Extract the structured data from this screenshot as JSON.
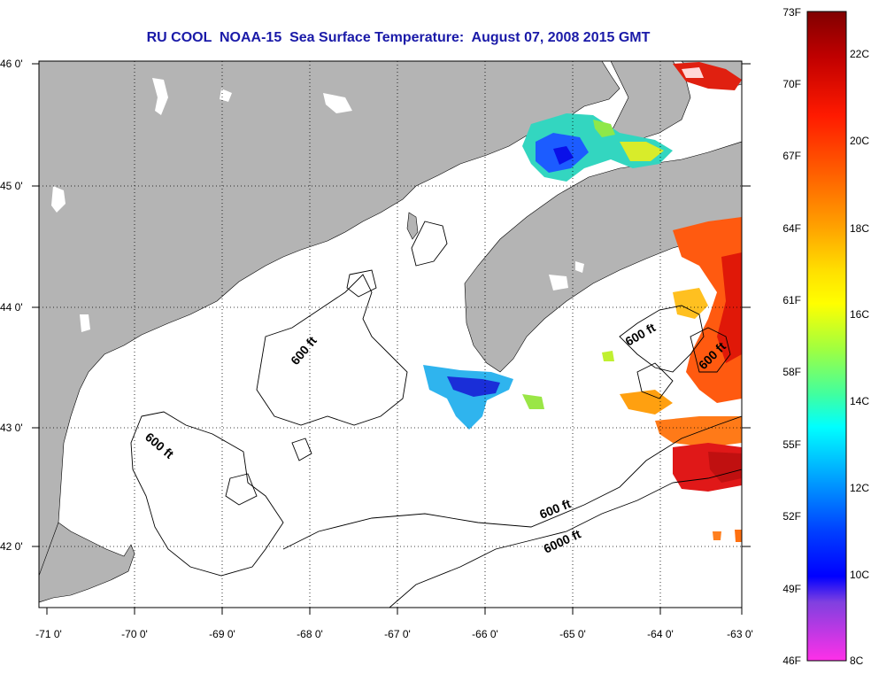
{
  "title": "RU COOL  NOAA-15  Sea Surface Temperature:  August 07, 2008 2015 GMT",
  "map": {
    "lon_range": [
      -71,
      -63
    ],
    "lat_range": [
      41.5,
      46
    ],
    "lon_ticks": [
      {
        "value": -71,
        "label": "-71 0'"
      },
      {
        "value": -70,
        "label": "-70 0'"
      },
      {
        "value": -69,
        "label": "-69 0'"
      },
      {
        "value": -68,
        "label": "-68 0'"
      },
      {
        "value": -67,
        "label": "-67 0'"
      },
      {
        "value": -66,
        "label": "-66 0'"
      },
      {
        "value": -65,
        "label": "-65 0'"
      },
      {
        "value": -64,
        "label": "-64 0'"
      },
      {
        "value": -63,
        "label": "-63 0'"
      }
    ],
    "lat_ticks": [
      {
        "value": 46,
        "label": "46 0'"
      },
      {
        "value": 45,
        "label": "45 0'"
      },
      {
        "value": 44,
        "label": "44 0'"
      },
      {
        "value": 43,
        "label": "43 0'"
      },
      {
        "value": 42,
        "label": "42 0'"
      }
    ],
    "grid": "dotted",
    "land_color": "#b4b4b4",
    "ocean_color": "#ffffff",
    "contour_labels": [
      "600 ft",
      "600 ft",
      "600 ft",
      "600 ft",
      "600 ft",
      "6000 ft"
    ]
  },
  "colorbar": {
    "fahrenheit_labels": [
      "73F",
      "70F",
      "67F",
      "64F",
      "61F",
      "58F",
      "55F",
      "52F",
      "49F",
      "46F"
    ],
    "celsius_labels": [
      "22C",
      "20C",
      "18C",
      "16C",
      "14C",
      "12C",
      "10C",
      "8C"
    ],
    "colors": [
      "#800000",
      "#c00000",
      "#ff1a00",
      "#ff6000",
      "#ff9900",
      "#ffd000",
      "#ffff00",
      "#a0ff40",
      "#40ffa0",
      "#00ffff",
      "#00b0ff",
      "#0060ff",
      "#0000ff",
      "#8040e0",
      "#c040d8",
      "#ff40e0"
    ]
  }
}
